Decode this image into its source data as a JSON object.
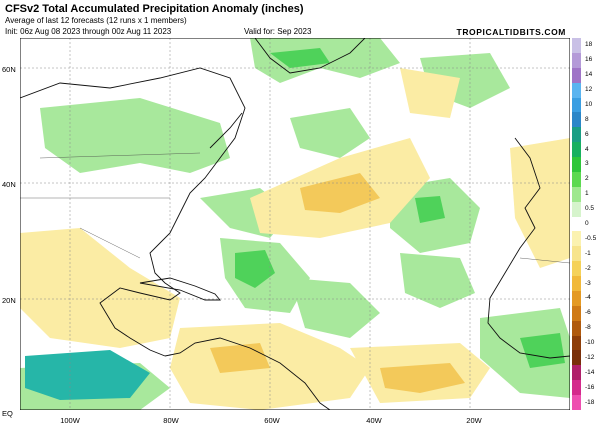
{
  "header": {
    "title": "CFSv2 Total Accumulated Precipitation Anomaly (inches)",
    "subtitle": "Average of last 12 forecasts (12 runs x 1 members)",
    "init": "Init: 06z Aug 08 2023 through 00z Aug 11 2023",
    "valid": "Valid for: Sep 2023",
    "brand": "TROPICALTIDBITS.COM"
  },
  "map": {
    "lat_labels": [
      "60N",
      "40N",
      "20N",
      "EQ"
    ],
    "lon_labels": [
      "100W",
      "80W",
      "60W",
      "40W",
      "20W"
    ]
  },
  "colorbar": {
    "labels": [
      "18",
      "16",
      "14",
      "12",
      "10",
      "8",
      "6",
      "4",
      "3",
      "2",
      "1",
      "0.5",
      "0",
      "-0.5",
      "-1",
      "-2",
      "-3",
      "-4",
      "-6",
      "-8",
      "-10",
      "-12",
      "-14",
      "-16",
      "-18"
    ],
    "colors": [
      "#c9c0e6",
      "#b49ad8",
      "#9f74c7",
      "#5ab4f0",
      "#3a9ee2",
      "#2b86c8",
      "#1a9e84",
      "#18b060",
      "#2ec63a",
      "#5cd950",
      "#9ee88e",
      "#d6f4cc",
      "#ffffff",
      "#fbf2b0",
      "#f7e48c",
      "#f5d25a",
      "#f1b93a",
      "#e49a24",
      "#cf7a16",
      "#b05a0e",
      "#8e3e0a",
      "#7a2f0a",
      "#b0206a",
      "#d42a8c",
      "#ee4fb0"
    ]
  }
}
